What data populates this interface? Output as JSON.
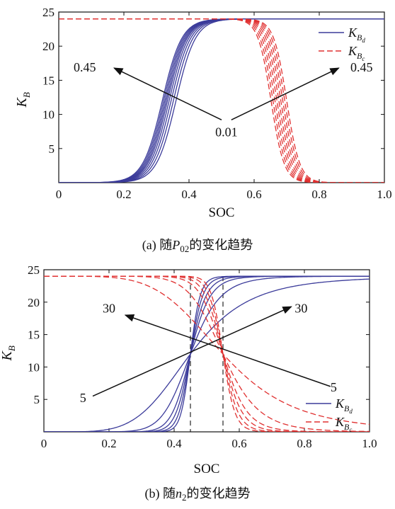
{
  "chart_data": [
    {
      "type": "line",
      "caption_prefix": "(a) 随",
      "caption_var": "P",
      "caption_var_sub": "02",
      "caption_suffix": "的变化趋势",
      "xlabel": "SOC",
      "ylabel": "K",
      "ylabel_sub": "B",
      "xlim": [
        0,
        1
      ],
      "ylim": [
        0,
        25
      ],
      "xticks": [
        "0",
        "0.2",
        "0.4",
        "0.6",
        "0.8",
        "1.0"
      ],
      "xtick_values": [
        0,
        0.2,
        0.4,
        0.6,
        0.8,
        1.0
      ],
      "yticks": [
        "5",
        "10",
        "15",
        "20",
        "25"
      ],
      "ytick_values": [
        5,
        10,
        15,
        20,
        25
      ],
      "legend": [
        {
          "main": "K",
          "sub": "B",
          "subsub": "d",
          "color": "#3b3b9a",
          "dash": "solid"
        },
        {
          "main": "K",
          "sub": "B",
          "subsub": "c",
          "color": "#e03030",
          "dash": "dashed"
        }
      ],
      "series": [
        {
          "group": "K_Bd",
          "color": "#3b3b9a",
          "dash": "solid",
          "kind": "rise",
          "max": 24,
          "centers": [
            0.318,
            0.322,
            0.326,
            0.33,
            0.334,
            0.339,
            0.345,
            0.352,
            0.36
          ],
          "width": 0.03
        },
        {
          "group": "K_Bc",
          "color": "#e03030",
          "dash": "dashed",
          "kind": "fall",
          "max": 24,
          "centers": [
            0.652,
            0.658,
            0.664,
            0.67,
            0.676,
            0.682,
            0.688,
            0.694,
            0.7
          ],
          "width": 0.02
        }
      ],
      "annotations": [
        {
          "text": "0.45",
          "x": 0.08,
          "y": 16.3
        },
        {
          "text": "0.45",
          "x": 0.93,
          "y": 16.3
        },
        {
          "text": "0.01",
          "x": 0.515,
          "y": 6.8
        }
      ],
      "arrows": [
        {
          "from": [
            0.5,
            9.2
          ],
          "to": [
            0.17,
            16.8
          ]
        },
        {
          "from": [
            0.53,
            9.2
          ],
          "to": [
            0.86,
            16.8
          ]
        }
      ]
    },
    {
      "type": "line",
      "caption_prefix": "(b) 随",
      "caption_var": "n",
      "caption_var_sub": "2",
      "caption_suffix": "的变化趋势",
      "xlabel": "SOC",
      "ylabel": "K",
      "ylabel_sub": "B",
      "xlim": [
        0,
        1
      ],
      "ylim": [
        0,
        25
      ],
      "xticks": [
        "0",
        "0.2",
        "0.4",
        "0.6",
        "0.8",
        "1.0"
      ],
      "xtick_values": [
        0,
        0.2,
        0.4,
        0.6,
        0.8,
        1.0
      ],
      "yticks": [
        "5",
        "10",
        "15",
        "20",
        "25"
      ],
      "ytick_values": [
        5,
        10,
        15,
        20,
        25
      ],
      "legend": [
        {
          "main": "K",
          "sub": "B",
          "subsub": "d",
          "color": "#3b3b9a",
          "dash": "solid"
        },
        {
          "main": "K",
          "sub": "B",
          "subsub": "c",
          "color": "#e03030",
          "dash": "dashed"
        }
      ],
      "vlines": [
        0.45,
        0.55
      ],
      "series": [
        {
          "group": "K_Bd",
          "color": "#3b3b9a",
          "dash": "solid",
          "kind": "power_rise",
          "max": 24,
          "ref": 0.45,
          "exponents": [
            30,
            24,
            19,
            15,
            10,
            5
          ]
        },
        {
          "group": "K_Bc",
          "color": "#e03030",
          "dash": "dashed",
          "kind": "power_fall",
          "max": 24,
          "ref": 0.55,
          "exponents": [
            30,
            24,
            19,
            15,
            10,
            5
          ]
        }
      ],
      "annotations": [
        {
          "text": "30",
          "x": 0.2,
          "y": 18.4
        },
        {
          "text": "30",
          "x": 0.79,
          "y": 18.4
        },
        {
          "text": "5",
          "x": 0.12,
          "y": 4.6
        },
        {
          "text": "5",
          "x": 0.89,
          "y": 6.2
        }
      ],
      "arrows": [
        {
          "from": [
            0.15,
            5.5
          ],
          "to": [
            0.76,
            19.3
          ]
        },
        {
          "from": [
            0.88,
            7.0
          ],
          "to": [
            0.25,
            18.0
          ]
        }
      ]
    }
  ],
  "colors": {
    "blue": "#3b3b9a",
    "red": "#e03030"
  }
}
